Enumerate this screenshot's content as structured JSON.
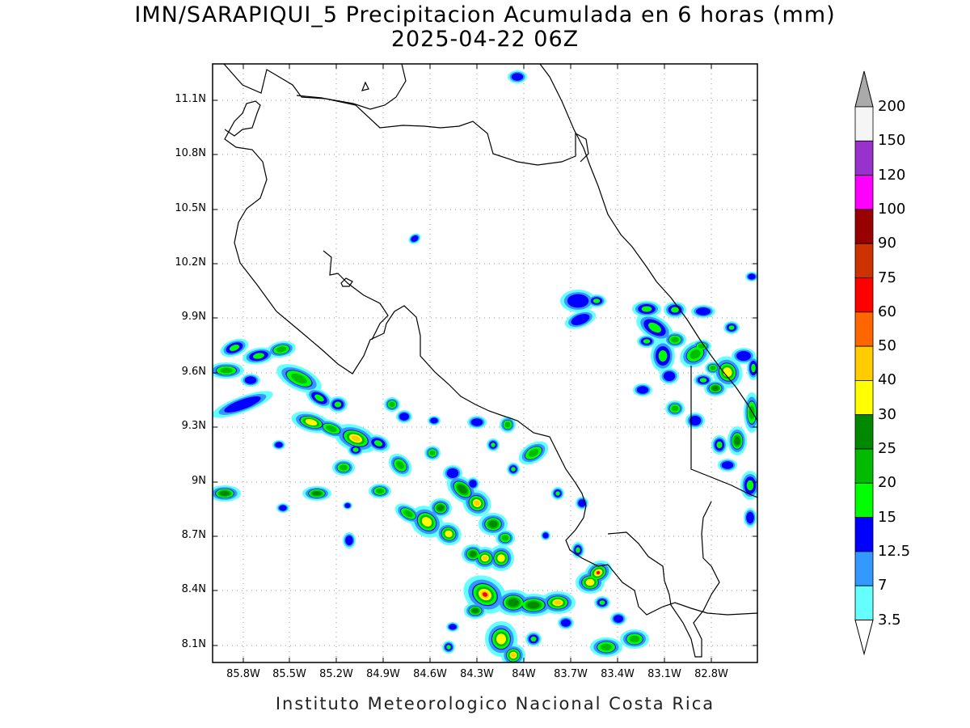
{
  "title_line1": "IMN/SARAPIQUI_5 Precipitacion Acumulada en 6 horas (mm)",
  "title_line2": "2025-04-22 06Z",
  "footer": "Instituto Meteorologico Nacional Costa Rica",
  "lat_labels": [
    "11.1N",
    "10.8N",
    "10.5N",
    "10.2N",
    "9.9N",
    "9.6N",
    "9.3N",
    "9N",
    "8.7N",
    "8.4N",
    "8.1N"
  ],
  "lon_labels": [
    "85.8W",
    "85.5W",
    "85.2W",
    "84.9W",
    "84.6W",
    "84.3W",
    "84W",
    "83.7W",
    "83.4W",
    "83.1W",
    "82.8W"
  ],
  "colorbar": {
    "labels": [
      "200",
      "150",
      "120",
      "100",
      "90",
      "75",
      "60",
      "50",
      "40",
      "30",
      "25",
      "20",
      "15",
      "12.5",
      "7",
      "3.5"
    ],
    "colors": [
      "#f5f5f5",
      "#9932cc",
      "#ff00ff",
      "#990000",
      "#cc3300",
      "#ff0000",
      "#ff6600",
      "#ffcc00",
      "#ffff00",
      "#008800",
      "#00bb00",
      "#00ff00",
      "#0000ff",
      "#3399ff",
      "#66ffff"
    ],
    "over_color": "#aaaaaa",
    "under_color": "#ffffff"
  }
}
